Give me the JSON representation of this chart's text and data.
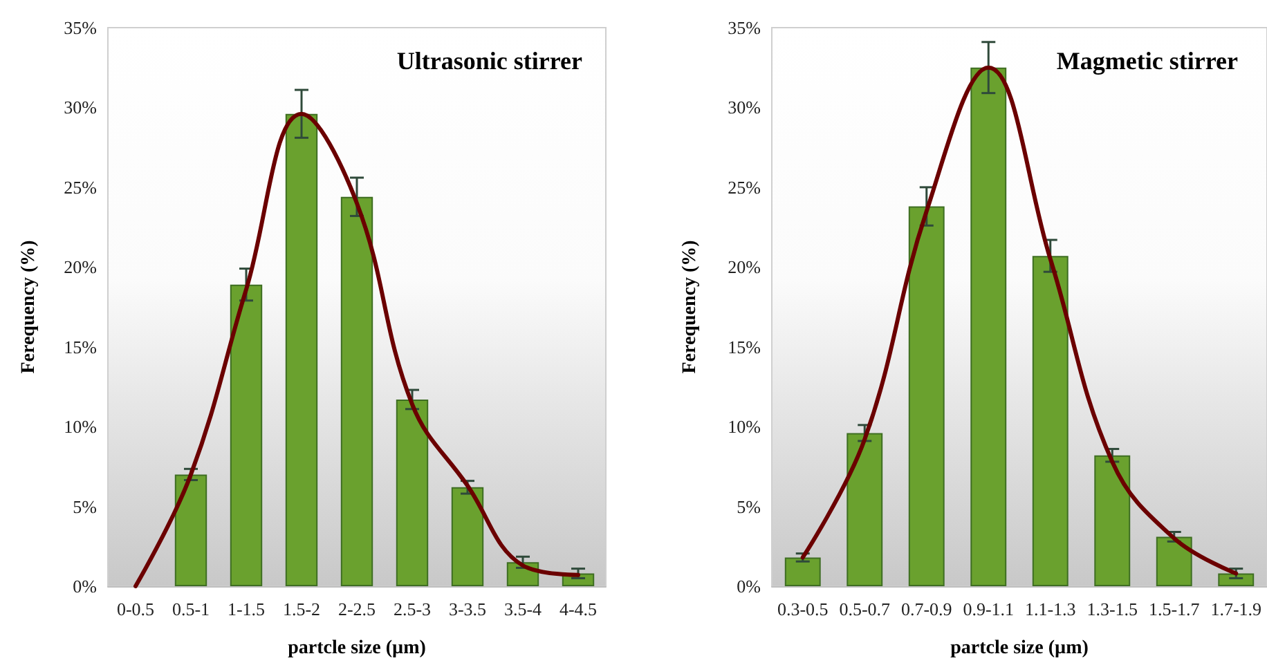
{
  "chart_data": [
    {
      "type": "bar",
      "title": "Ultrasonic stirrer",
      "xlabel": "partcle size (µm)",
      "ylabel": "Ferequency (%)",
      "categories": [
        "0-0.5",
        "0.5-1",
        "1-1.5",
        "1.5-2",
        "2-2.5",
        "2.5-3",
        "3-3.5",
        "3.5-4",
        "4-4.5"
      ],
      "series": [
        {
          "color": "#6aa12e",
          "values": [
            0,
            7.0,
            18.9,
            29.6,
            24.4,
            11.7,
            6.2,
            1.5,
            0.8
          ],
          "errors": [
            null,
            0.35,
            1.0,
            1.5,
            1.2,
            0.6,
            0.4,
            0.35,
            0.3
          ]
        },
        {
          "type": "line",
          "color": "#6b0000",
          "values": [
            0,
            7.0,
            18.6,
            29.6,
            24.0,
            11.4,
            6.3,
            1.3,
            0.7
          ]
        }
      ],
      "ylim": [
        0,
        35
      ],
      "yticks": [
        {
          "value": 0,
          "label": "0%"
        },
        {
          "value": 5,
          "label": "5%"
        },
        {
          "value": 10,
          "label": "10%"
        },
        {
          "value": 15,
          "label": "15%"
        },
        {
          "value": 20,
          "label": "20%"
        },
        {
          "value": 25,
          "label": "25%"
        },
        {
          "value": 30,
          "label": "30%"
        },
        {
          "value": 35,
          "label": "35%"
        }
      ],
      "grid": false,
      "marker": "none",
      "line_style": "solid"
    },
    {
      "type": "bar",
      "title": "Magmetic stirrer",
      "xlabel": "partcle size (µm)",
      "ylabel": "Ferequency (%)",
      "categories": [
        "0.3-0.5",
        "0.5-0.7",
        "0.7-0.9",
        "0.9-1.1",
        "1.1-1.3",
        "1.3-1.5",
        "1.5-1.7",
        "1.7-1.9"
      ],
      "series": [
        {
          "color": "#6aa12e",
          "values": [
            1.8,
            9.6,
            23.8,
            32.5,
            20.7,
            8.2,
            3.1,
            0.8
          ],
          "errors": [
            0.25,
            0.5,
            1.2,
            1.6,
            1.0,
            0.4,
            0.3,
            0.3
          ]
        },
        {
          "type": "line",
          "color": "#6b0000",
          "values": [
            1.8,
            9.2,
            23.5,
            32.5,
            20.5,
            7.8,
            3.0,
            0.8
          ]
        }
      ],
      "ylim": [
        0,
        35
      ],
      "yticks": [
        {
          "value": 0,
          "label": "0%"
        },
        {
          "value": 5,
          "label": "5%"
        },
        {
          "value": 10,
          "label": "10%"
        },
        {
          "value": 15,
          "label": "15%"
        },
        {
          "value": 20,
          "label": "20%"
        },
        {
          "value": 25,
          "label": "25%"
        },
        {
          "value": 30,
          "label": "30%"
        },
        {
          "value": 35,
          "label": "35%"
        }
      ],
      "grid": false,
      "marker": "none",
      "line_style": "solid"
    }
  ]
}
